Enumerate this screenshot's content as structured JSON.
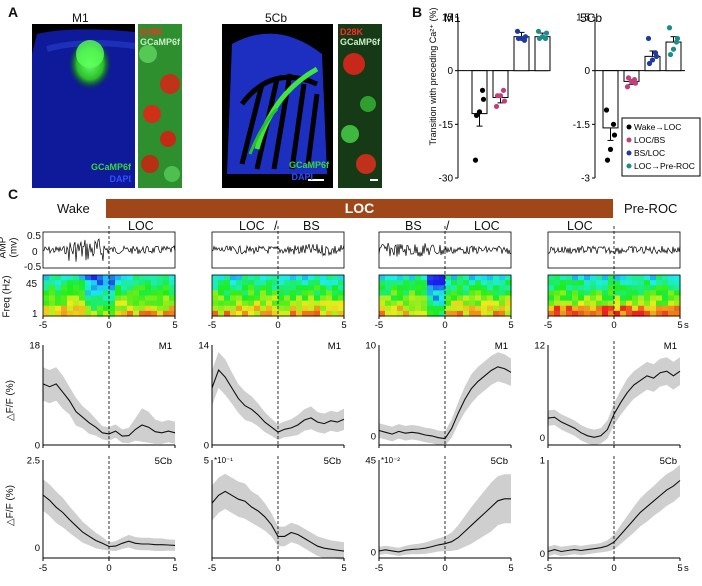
{
  "panel_a": {
    "letter": "A",
    "m1": {
      "title": "M1",
      "stain1": "GCaMP6f",
      "stain2": "DAPI",
      "zoom_stain1": "D28K",
      "zoom_stain2": "GCaMP6f"
    },
    "cb": {
      "title": "5Cb",
      "stain1": "GCaMP6f",
      "stain2": "DAPI",
      "zoom_stain1": "D28K",
      "zoom_stain2": "GCaMP6f"
    },
    "colors": {
      "dapi": "#1428c8",
      "gcamp": "#39d639",
      "d28k": "#e02020"
    }
  },
  "panel_b": {
    "letter": "B"
  },
  "panel_c": {
    "letter": "C",
    "wake_label": "Wake",
    "loc_bar_label": "LOC",
    "preroc_label": "Pre-ROC",
    "loc_bar_color": "#a0471a",
    "column_headers": [
      {
        "left": "LOC",
        "sep": "",
        "right": ""
      },
      {
        "left": "LOC",
        "sep": "/",
        "right": "BS"
      },
      {
        "left": "BS",
        "sep": "/",
        "right": "LOC"
      },
      {
        "left": "LOC",
        "sep": "",
        "right": ""
      }
    ],
    "amp_ylabel": "AMP",
    "amp_unit": "(mv)",
    "amp_ticks": [
      "0.5",
      "0",
      "-0.5"
    ],
    "freq_ylabel": "Freq (Hz)",
    "freq_ticks": [
      "45",
      "1"
    ],
    "dff_ylabel": "△F/F (%)",
    "time_ticks": [
      "-5",
      "0",
      "5"
    ],
    "time_unit": "s"
  },
  "chart_data": [
    {
      "type": "bar",
      "panel": "B-M1",
      "title": "M1",
      "ylabel": "Transition with preceding Ca²⁺ (%)",
      "ylim": [
        -30,
        15
      ],
      "yticks": [
        "15",
        "0",
        "-15",
        "-30"
      ],
      "categories": [
        "Wake→LOC",
        "LOC/BS",
        "BS/LOC",
        "LOC→Pre-ROC"
      ],
      "values": [
        -12,
        -7.5,
        9.5,
        9.5
      ],
      "errors": [
        3.5,
        1.5,
        1.2,
        1.0
      ],
      "points": [
        [
          -25,
          -8,
          -11.5,
          -12.5,
          -5.5
        ],
        [
          -10,
          -8.5,
          -7,
          -7,
          -5.5
        ],
        [
          11,
          9.5,
          9,
          9,
          8.5
        ],
        [
          11,
          10.5,
          9.5,
          9,
          9
        ]
      ],
      "colors": [
        "#000000",
        "#c0407a",
        "#1f3a9e",
        "#1e8c8c"
      ]
    },
    {
      "type": "bar",
      "panel": "B-5Cb",
      "title": "5Cb",
      "ylim": [
        -3,
        1.5
      ],
      "yticks": [
        "1.5",
        "0",
        "-1.5",
        "-3"
      ],
      "categories": [
        "Wake→LOC",
        "LOC/BS",
        "BS/LOC",
        "LOC→Pre-ROC"
      ],
      "values": [
        -1.6,
        -0.3,
        0.4,
        0.8
      ],
      "errors": [
        0.35,
        0.08,
        0.15,
        0.15
      ],
      "points": [
        [
          -1.1,
          -1.8,
          -2.2,
          -2.5,
          -1.5
        ],
        [
          -0.45,
          -0.35,
          -0.3,
          -0.2,
          -0.25
        ],
        [
          0.9,
          0.4,
          0.3,
          0.2,
          0.5
        ],
        [
          1.2,
          0.9,
          0.6,
          0.45,
          0.8
        ]
      ],
      "colors": [
        "#000000",
        "#c0407a",
        "#1f3a9e",
        "#1e8c8c"
      ],
      "legend": [
        "Wake→LOC",
        "LOC/BS",
        "BS/LOC",
        "LOC→Pre-ROC"
      ]
    },
    {
      "type": "line",
      "panel": "C-M1",
      "region": "M1",
      "xlim": [
        -5,
        5
      ],
      "series": [
        {
          "ylim": [
            0,
            18
          ],
          "yticks": [
            "18",
            "0"
          ],
          "tick_prefix": "",
          "x": [
            -5,
            -4.5,
            -4,
            -3.5,
            -3,
            -2.5,
            -2,
            -1.5,
            -1,
            -0.5,
            0,
            0.5,
            1,
            1.5,
            2,
            2.5,
            3,
            3.5,
            4,
            4.5,
            5
          ],
          "y": [
            11,
            10.5,
            11,
            9.5,
            8,
            6,
            5,
            4,
            3.2,
            2.2,
            2,
            2.5,
            1.6,
            1.7,
            2.8,
            3.6,
            3.2,
            2.4,
            2.2,
            2.5,
            2.2
          ],
          "err": [
            3,
            3,
            3,
            3,
            2.5,
            2.5,
            2,
            2,
            1.5,
            1.2,
            1.2,
            1.2,
            1.2,
            1.4,
            2,
            3,
            2.8,
            2.2,
            2,
            2,
            2
          ]
        },
        {
          "ylim": [
            0,
            14
          ],
          "yticks": [
            "14",
            "0"
          ],
          "x": [
            -5,
            -4.5,
            -4,
            -3.5,
            -3,
            -2.5,
            -2,
            -1.5,
            -1,
            -0.5,
            0,
            0.5,
            1,
            1.5,
            2,
            2.5,
            3,
            3.5,
            4,
            4.5,
            5
          ],
          "y": [
            8,
            10.5,
            9.5,
            8,
            6.5,
            5.5,
            5,
            4.2,
            3.2,
            2.5,
            1.8,
            2.2,
            2.4,
            2.8,
            3.5,
            3.8,
            3.2,
            3,
            3.4,
            3.2,
            3.6
          ],
          "err": [
            2.5,
            2.5,
            2.5,
            2.2,
            2,
            2,
            1.8,
            1.6,
            1.4,
            1.2,
            1.1,
            1.1,
            1.2,
            1.4,
            1.5,
            1.6,
            1.4,
            1.4,
            1.4,
            1.4,
            1.5
          ]
        },
        {
          "ylim": [
            -1,
            10
          ],
          "yticks": [
            "10",
            "0"
          ],
          "x": [
            -5,
            -4.5,
            -4,
            -3.5,
            -3,
            -2.5,
            -2,
            -1.5,
            -1,
            -0.5,
            0,
            0.5,
            1,
            1.5,
            2,
            2.5,
            3,
            3.5,
            4,
            4.5,
            5
          ],
          "y": [
            0.6,
            0.4,
            0.2,
            0.5,
            0.3,
            0.4,
            0.3,
            0.1,
            0,
            -0.2,
            -0.3,
            0.8,
            2.5,
            4,
            5.2,
            6,
            6.6,
            7.2,
            7.6,
            7.4,
            7
          ],
          "err": [
            0.8,
            0.8,
            0.8,
            0.8,
            0.8,
            0.8,
            0.8,
            0.8,
            0.8,
            0.8,
            0.8,
            1,
            1.2,
            1.4,
            1.6,
            1.6,
            1.6,
            1.6,
            1.6,
            1.6,
            1.5
          ]
        },
        {
          "ylim": [
            -1,
            12
          ],
          "yticks": [
            "12",
            "0"
          ],
          "x": [
            -5,
            -4.5,
            -4,
            -3.5,
            -3,
            -2.5,
            -2,
            -1.5,
            -1,
            -0.5,
            0,
            0.5,
            1,
            1.5,
            2,
            2.5,
            3,
            3.5,
            4,
            4.5,
            5
          ],
          "y": [
            2.5,
            2.6,
            2,
            1.6,
            1.2,
            0.6,
            0.2,
            0,
            0.2,
            1,
            3,
            4.5,
            5.8,
            6.8,
            7.4,
            8,
            7.7,
            8.4,
            8.6,
            8,
            8.6
          ],
          "err": [
            1,
            1,
            1,
            1,
            1,
            1,
            1,
            1,
            1,
            1.2,
            1.4,
            1.6,
            1.8,
            1.8,
            1.8,
            1.8,
            1.8,
            1.8,
            1.8,
            1.8,
            1.8
          ]
        }
      ]
    },
    {
      "type": "line",
      "panel": "C-5Cb",
      "region": "5Cb",
      "xlim": [
        -5,
        5
      ],
      "series": [
        {
          "ylim": [
            -0.3,
            2.5
          ],
          "yticks": [
            "2.5",
            "0"
          ],
          "tick_prefix": "",
          "x": [
            -5,
            -4.5,
            -4,
            -3.5,
            -3,
            -2.5,
            -2,
            -1.5,
            -1,
            -0.5,
            0,
            0.5,
            1,
            1.5,
            2,
            2.5,
            3,
            3.5,
            4,
            4.5,
            5
          ],
          "y": [
            1.5,
            1.35,
            1.15,
            1,
            0.8,
            0.62,
            0.44,
            0.32,
            0.2,
            0.12,
            0.03,
            0.04,
            0.12,
            0.18,
            0.12,
            0.1,
            0.1,
            0.08,
            0.08,
            0.07,
            0.06
          ],
          "err": [
            0.45,
            0.45,
            0.45,
            0.42,
            0.38,
            0.34,
            0.3,
            0.26,
            0.22,
            0.18,
            0.12,
            0.14,
            0.16,
            0.18,
            0.18,
            0.18,
            0.18,
            0.18,
            0.18,
            0.16,
            0.16
          ]
        },
        {
          "ylim": [
            0,
            5
          ],
          "yticks": [
            "5",
            ""
          ],
          "tick_prefix": "*10⁻¹",
          "x": [
            -5,
            -4.5,
            -4,
            -3.5,
            -3,
            -2.5,
            -2,
            -1.5,
            -1,
            -0.5,
            0,
            0.5,
            1,
            1.5,
            2,
            2.5,
            3,
            3.5,
            4,
            4.5,
            5
          ],
          "y": [
            2.8,
            3.2,
            3.4,
            3.2,
            3,
            2.9,
            2.6,
            2.4,
            2.1,
            1.7,
            1.1,
            1.1,
            1.3,
            1.2,
            1,
            0.8,
            0.6,
            0.5,
            0.45,
            0.4,
            0.35
          ],
          "err": [
            0.9,
            0.9,
            0.9,
            0.9,
            0.9,
            0.9,
            0.8,
            0.8,
            0.7,
            0.6,
            0.5,
            0.5,
            0.5,
            0.5,
            0.5,
            0.5,
            0.5,
            0.5,
            0.45,
            0.45,
            0.45
          ]
        },
        {
          "ylim": [
            -3,
            45
          ],
          "yticks": [
            "45",
            "0"
          ],
          "tick_prefix": "*10⁻²",
          "x": [
            -5,
            -4.5,
            -4,
            -3.5,
            -3,
            -2.5,
            -2,
            -1.5,
            -1,
            -0.5,
            0,
            0.5,
            1,
            1.5,
            2,
            2.5,
            3,
            3.5,
            4,
            4.5,
            5
          ],
          "y": [
            0.5,
            1,
            0.5,
            0,
            0.8,
            1.2,
            1.4,
            1.8,
            2.6,
            3.4,
            4,
            5,
            7,
            10,
            13,
            16,
            19,
            22,
            25,
            26,
            26
          ],
          "err": [
            2,
            2,
            2,
            2,
            2.2,
            2.4,
            2.6,
            2.8,
            3,
            3.2,
            3.6,
            4.5,
            6,
            7.5,
            9,
            10,
            11,
            12,
            12,
            12,
            12
          ]
        },
        {
          "ylim": [
            -0.05,
            1
          ],
          "yticks": [
            "1",
            "0"
          ],
          "tick_prefix": "",
          "x": [
            -5,
            -4.5,
            -4,
            -3.5,
            -3,
            -2.5,
            -2,
            -1.5,
            -1,
            -0.5,
            0,
            0.5,
            1,
            1.5,
            2,
            2.5,
            3,
            3.5,
            4,
            4.5,
            5
          ],
          "y": [
            0.02,
            0.04,
            0.02,
            0.03,
            0.04,
            0.03,
            0.04,
            0.05,
            0.06,
            0.08,
            0.12,
            0.2,
            0.28,
            0.36,
            0.44,
            0.5,
            0.56,
            0.62,
            0.68,
            0.72,
            0.78
          ],
          "err": [
            0.05,
            0.05,
            0.05,
            0.05,
            0.05,
            0.05,
            0.05,
            0.05,
            0.05,
            0.06,
            0.08,
            0.1,
            0.12,
            0.14,
            0.15,
            0.16,
            0.16,
            0.17,
            0.17,
            0.17,
            0.17
          ]
        }
      ]
    }
  ]
}
